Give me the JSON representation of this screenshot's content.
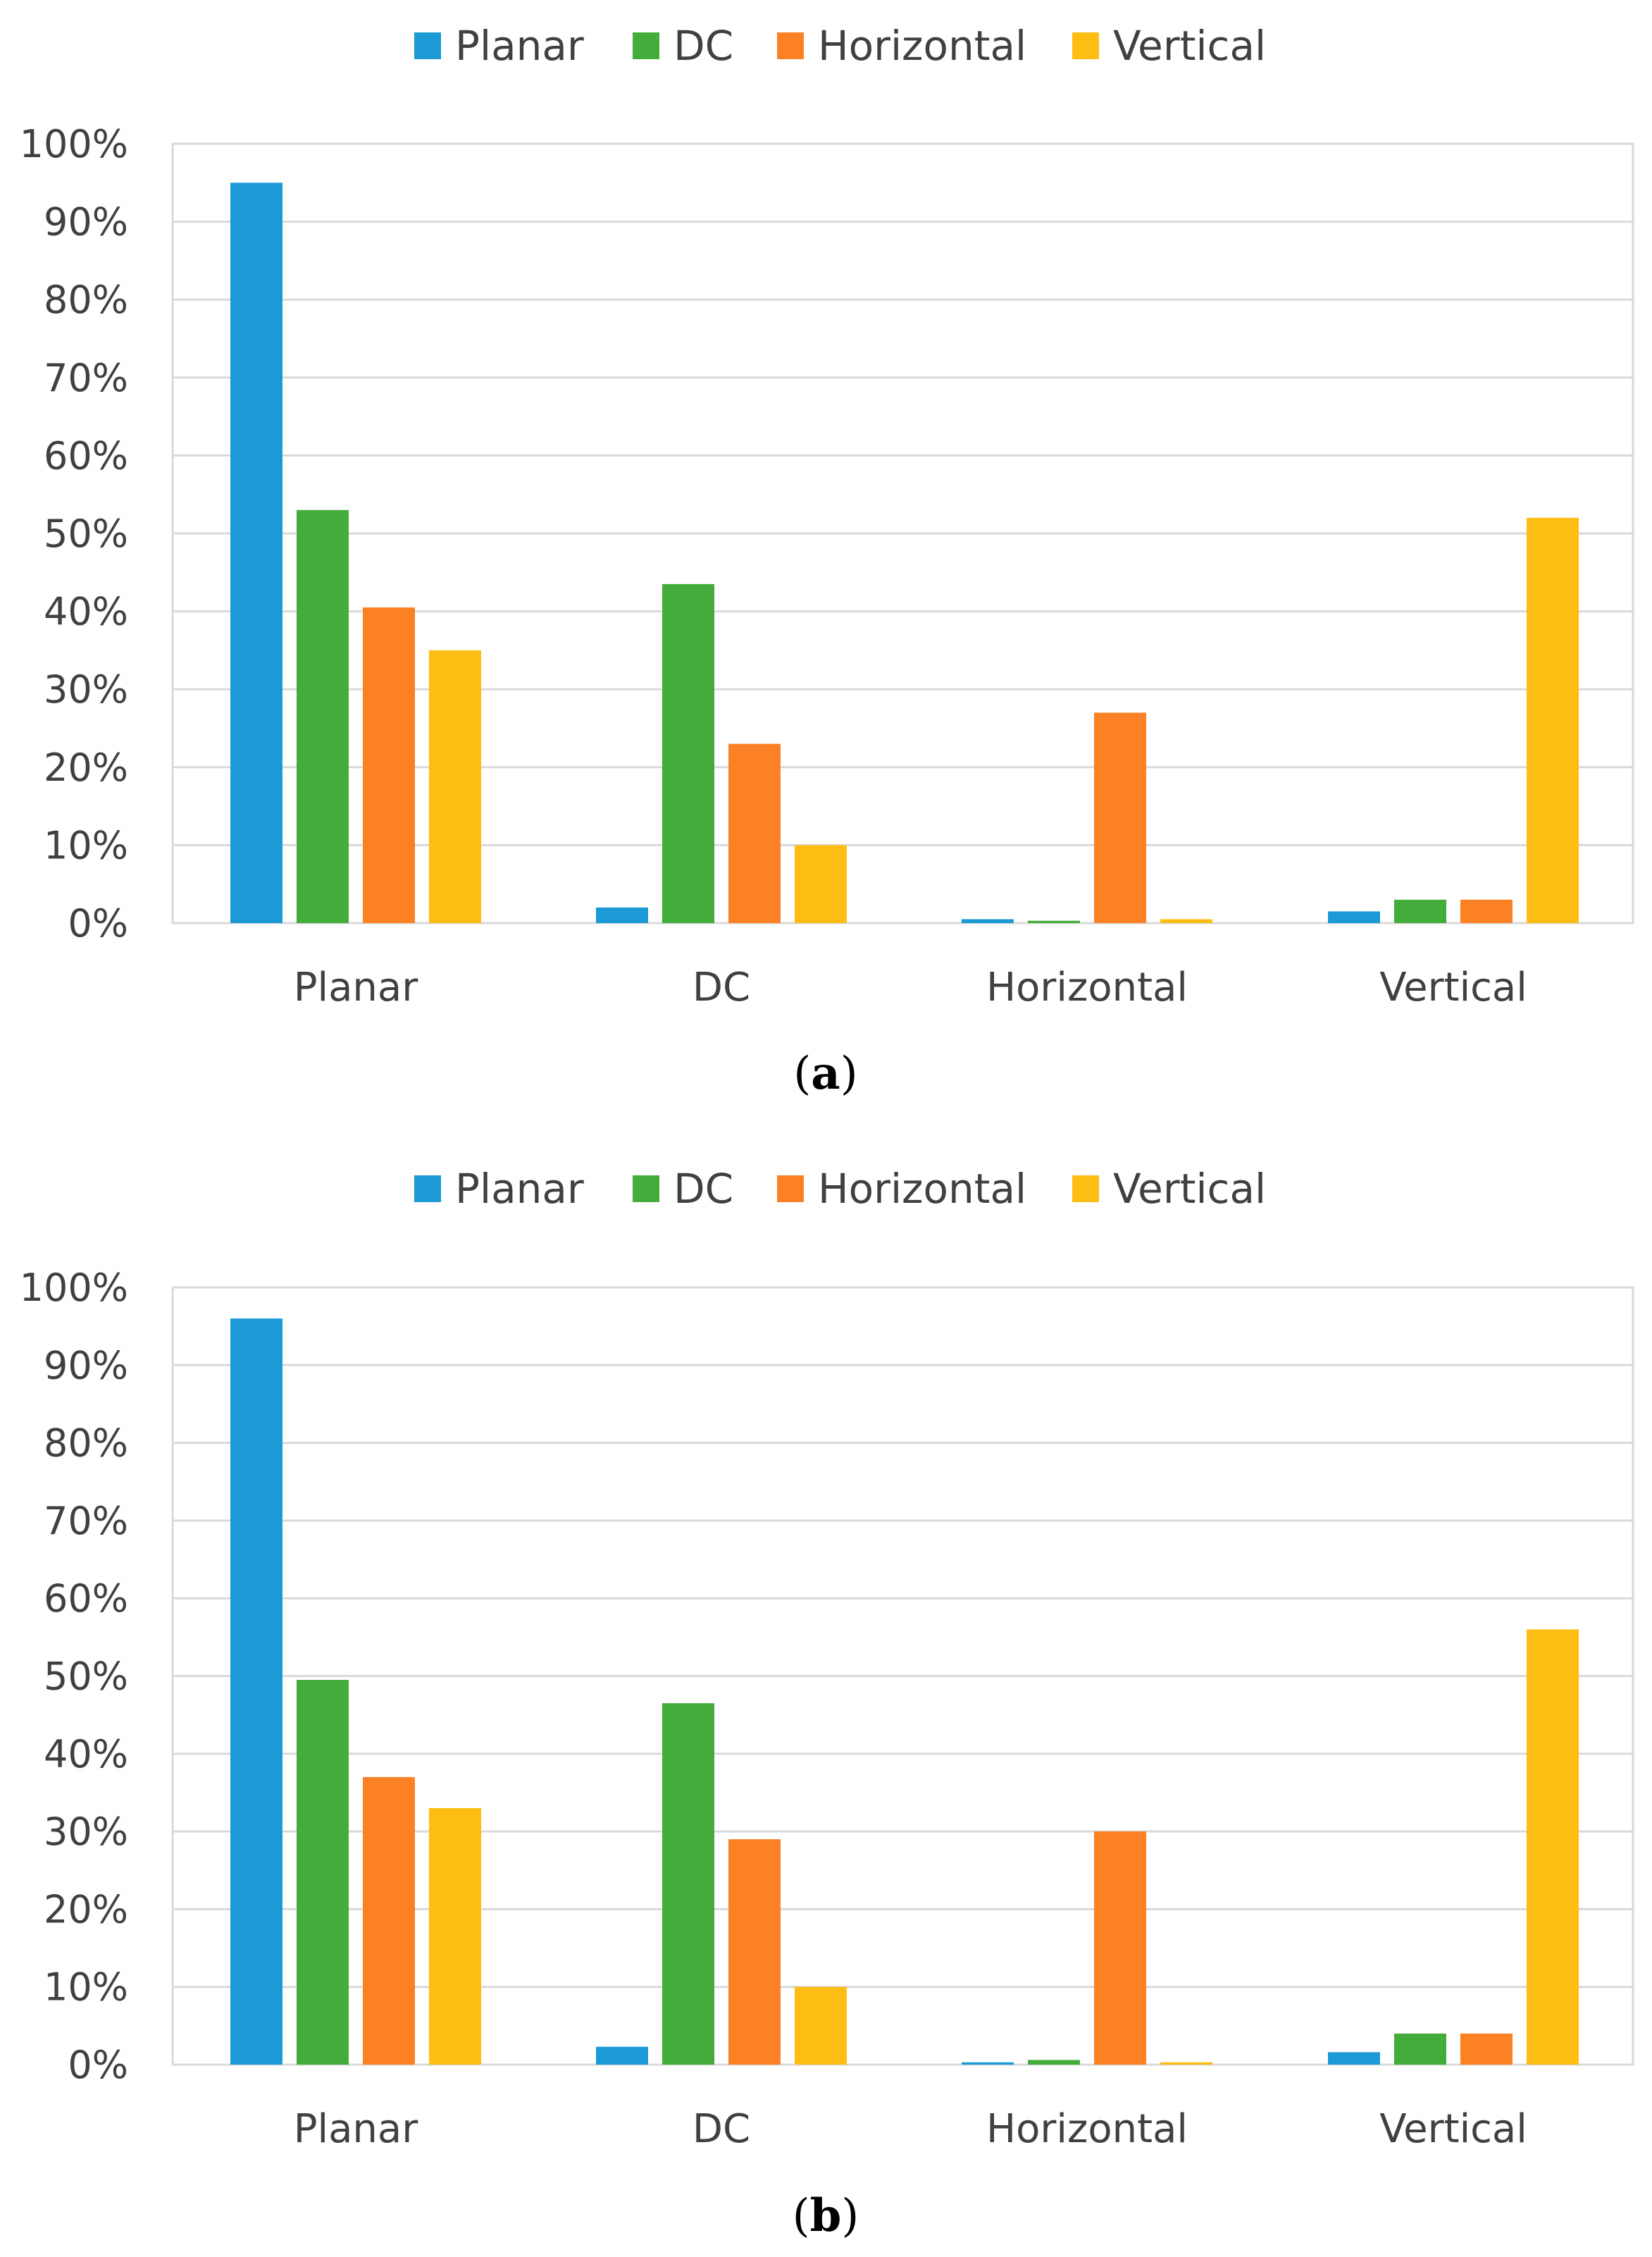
{
  "colors": {
    "Planar": "#1b9ad6",
    "DC": "#43ac3a",
    "Horizontal": "#fb8124",
    "Vertical": "#fdbd12",
    "grid": "#d9d9d9",
    "text": "#404040"
  },
  "chart_data": [
    {
      "type": "bar",
      "panel_label": "a",
      "legend": [
        "Planar",
        "DC",
        "Horizontal",
        "Vertical"
      ],
      "legend_position": "top-center",
      "categories": [
        "Planar",
        "DC",
        "Horizontal",
        "Vertical"
      ],
      "ylim": [
        0,
        100
      ],
      "yticks": [
        "0%",
        "10%",
        "20%",
        "30%",
        "40%",
        "50%",
        "60%",
        "70%",
        "80%",
        "90%",
        "100%"
      ],
      "grid": true,
      "series": [
        {
          "name": "Planar",
          "values": [
            95,
            2,
            0.5,
            1.5
          ]
        },
        {
          "name": "DC",
          "values": [
            53,
            43.5,
            0.3,
            3
          ]
        },
        {
          "name": "Horizontal",
          "values": [
            40.5,
            23,
            27,
            3
          ]
        },
        {
          "name": "Vertical",
          "values": [
            35,
            10,
            0.5,
            52
          ]
        }
      ]
    },
    {
      "type": "bar",
      "panel_label": "b",
      "legend": [
        "Planar",
        "DC",
        "Horizontal",
        "Vertical"
      ],
      "legend_position": "top-center",
      "categories": [
        "Planar",
        "DC",
        "Horizontal",
        "Vertical"
      ],
      "ylim": [
        0,
        100
      ],
      "yticks": [
        "0%",
        "10%",
        "20%",
        "30%",
        "40%",
        "50%",
        "60%",
        "70%",
        "80%",
        "90%",
        "100%"
      ],
      "grid": true,
      "series": [
        {
          "name": "Planar",
          "values": [
            96,
            2.3,
            0.3,
            1.6
          ]
        },
        {
          "name": "DC",
          "values": [
            49.5,
            46.5,
            0.6,
            4
          ]
        },
        {
          "name": "Horizontal",
          "values": [
            37,
            29,
            30,
            4
          ]
        },
        {
          "name": "Vertical",
          "values": [
            33,
            10,
            0.3,
            56
          ]
        }
      ]
    }
  ]
}
